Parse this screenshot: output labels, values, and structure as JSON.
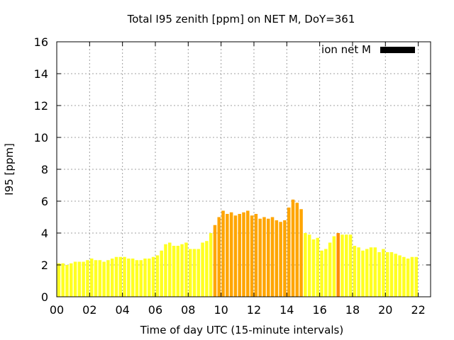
{
  "chart_data": {
    "type": "bar",
    "title": "Total I95 zenith [ppm] on NET M, DoY=361",
    "xlabel": "Time of day UTC (15-minute intervals)",
    "ylabel": "I95 [ppm]",
    "ylim": [
      0,
      16
    ],
    "yticks": [
      "0",
      "2",
      "4",
      "6",
      "8",
      "10",
      "12",
      "14",
      "16"
    ],
    "xticks": [
      "00",
      "02",
      "04",
      "06",
      "08",
      "10",
      "12",
      "14",
      "16",
      "18",
      "20",
      "22"
    ],
    "grid": true,
    "legend": {
      "label": "ion net M",
      "color": "#000000",
      "placement": "top-right"
    },
    "colors": {
      "low": "#ffff22",
      "mid": "#ffa500",
      "high": "#ff8c00"
    },
    "bin_hours": 0.25,
    "x_start_hour": 0,
    "values": [
      2.1,
      2.1,
      2.0,
      2.1,
      2.2,
      2.2,
      2.2,
      2.3,
      2.4,
      2.3,
      2.3,
      2.2,
      2.3,
      2.4,
      2.5,
      2.5,
      2.5,
      2.4,
      2.4,
      2.3,
      2.3,
      2.4,
      2.4,
      2.5,
      2.6,
      2.9,
      3.3,
      3.4,
      3.2,
      3.2,
      3.3,
      3.4,
      3.0,
      3.0,
      3.0,
      3.4,
      3.5,
      4.0,
      4.5,
      5.0,
      5.4,
      5.2,
      5.3,
      5.1,
      5.2,
      5.3,
      5.4,
      5.1,
      5.2,
      4.9,
      5.0,
      4.9,
      5.0,
      4.8,
      4.7,
      4.8,
      5.6,
      6.1,
      5.9,
      5.5,
      4.0,
      3.9,
      3.6,
      3.7,
      2.9,
      3.0,
      3.4,
      3.8,
      4.0,
      3.9,
      3.9,
      3.9,
      3.2,
      3.1,
      2.9,
      3.0,
      3.1,
      3.1,
      2.8,
      3.0,
      2.8,
      2.8,
      2.7,
      2.6,
      2.5,
      2.4,
      2.5,
      2.5
    ],
    "bar_levels": [
      0,
      0,
      0,
      0,
      0,
      0,
      0,
      0,
      0,
      0,
      0,
      0,
      0,
      0,
      0,
      0,
      0,
      0,
      0,
      0,
      0,
      0,
      0,
      0,
      0,
      0,
      0,
      0,
      0,
      0,
      0,
      0,
      0,
      0,
      0,
      0,
      0,
      0,
      1,
      1,
      1,
      1,
      1,
      1,
      1,
      1,
      1,
      1,
      1,
      1,
      1,
      1,
      1,
      1,
      1,
      1,
      1,
      1,
      1,
      1,
      0,
      0,
      0,
      0,
      0,
      0,
      0,
      0,
      2,
      0,
      0,
      0,
      0,
      0,
      0,
      0,
      0,
      0,
      0,
      0,
      0,
      0,
      0,
      0,
      0,
      0,
      0,
      0
    ]
  }
}
